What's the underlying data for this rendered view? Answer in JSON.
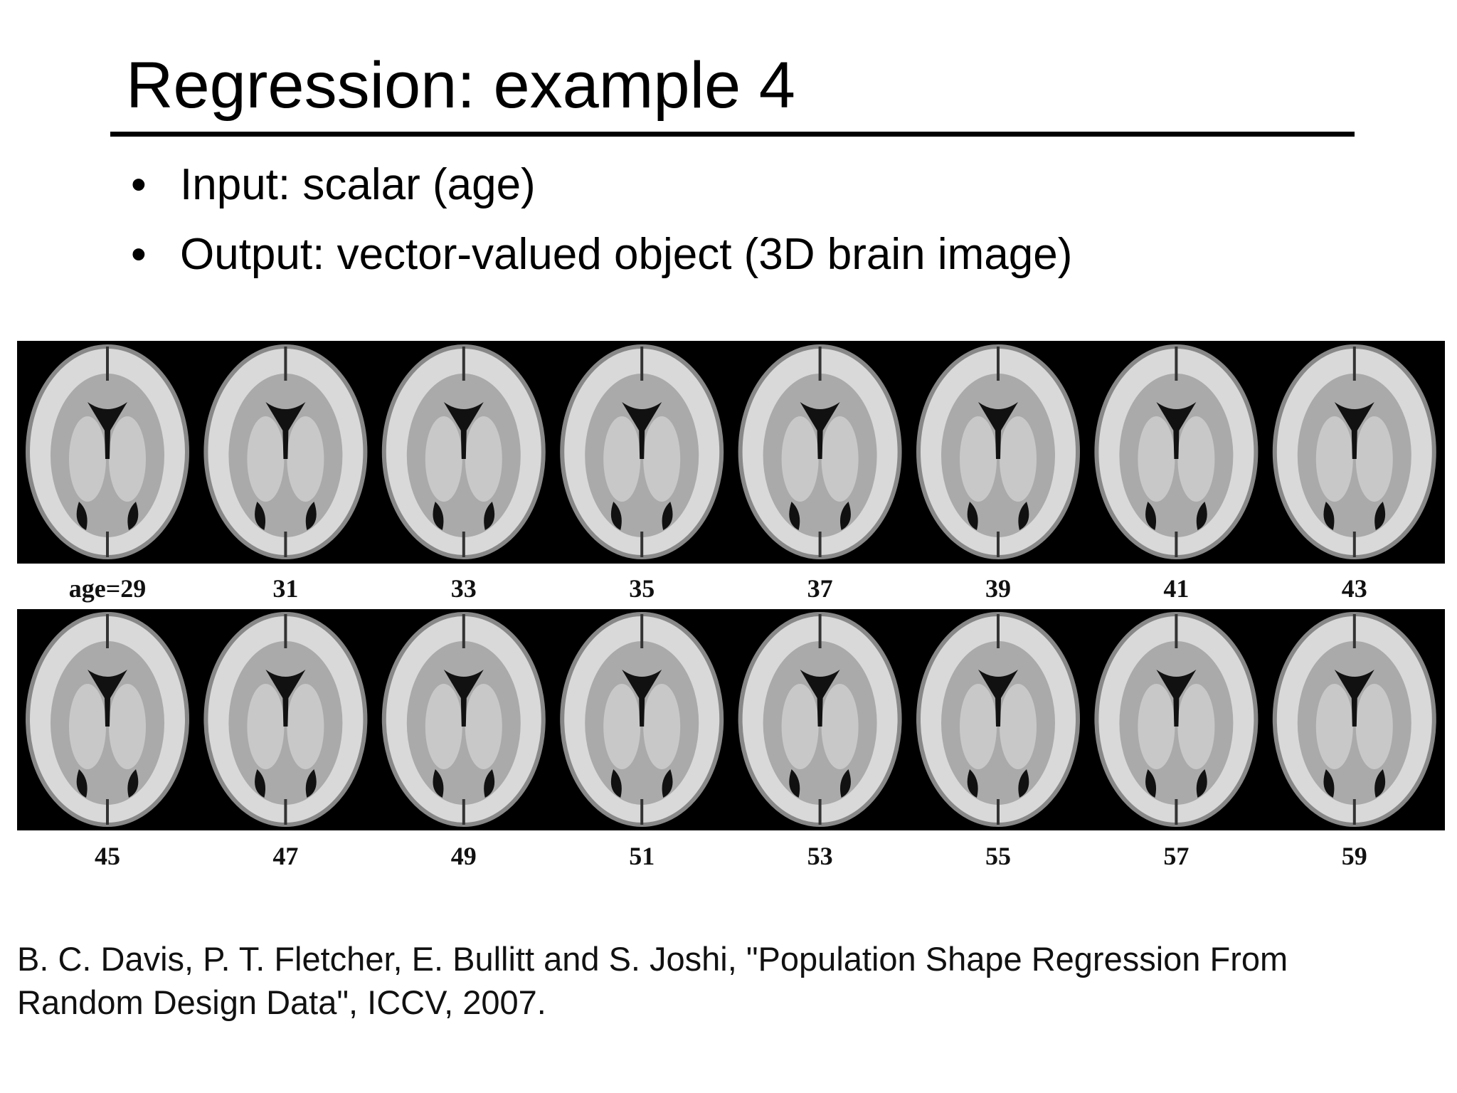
{
  "title": "Regression: example 4",
  "bullets": [
    "Input: scalar (age)",
    "Output: vector-valued object (3D brain image)"
  ],
  "figure": {
    "labels": [
      [
        "age=29",
        "31",
        "33",
        "35",
        "37",
        "39",
        "41",
        "43"
      ],
      [
        "45",
        "47",
        "49",
        "51",
        "53",
        "55",
        "57",
        "59"
      ]
    ]
  },
  "citation": [
    "B. C. Davis, P. T. Fletcher, E. Bullitt and S. Joshi, \"Population Shape Regression From",
    "Random Design Data\", ICCV, 2007."
  ]
}
